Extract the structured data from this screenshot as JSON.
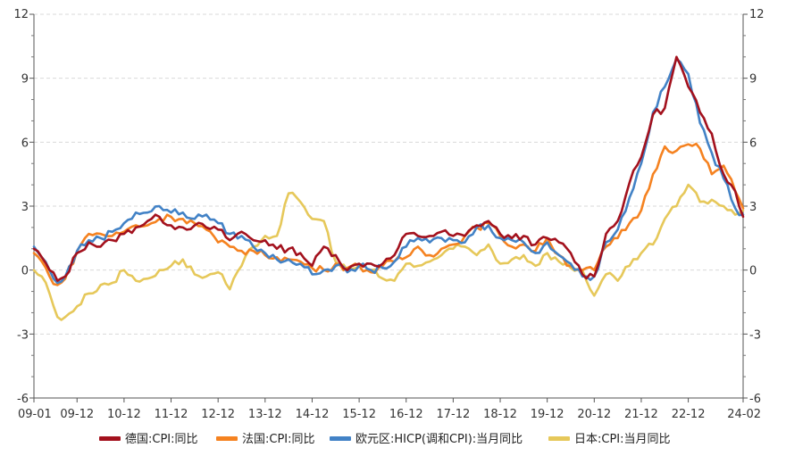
{
  "chart_data": {
    "type": "line",
    "title": "",
    "xlabel": "",
    "ylabel": "",
    "ylim": [
      -6,
      12
    ],
    "y_ticks": [
      -6,
      -3,
      0,
      3,
      6,
      9,
      12
    ],
    "y_tick_labels": [
      "-6",
      "-3",
      "0",
      "3",
      "6",
      "9",
      "12"
    ],
    "x_tick_labels": [
      "09-01",
      "09-12",
      "10-12",
      "11-12",
      "12-12",
      "13-12",
      "14-12",
      "15-12",
      "16-12",
      "17-12",
      "18-12",
      "19-12",
      "20-12",
      "21-12",
      "22-12",
      "24-02"
    ],
    "x_tick_dates": [
      "2009-01",
      "2009-12",
      "2010-12",
      "2011-12",
      "2012-12",
      "2013-12",
      "2014-12",
      "2015-12",
      "2016-12",
      "2017-12",
      "2018-12",
      "2019-12",
      "2020-12",
      "2021-12",
      "2022-12",
      "2024-02"
    ],
    "grid": true,
    "dual_y_axis": true,
    "legend_position": "bottom",
    "series": [
      {
        "name": "德国:CPI:同比",
        "color": "#A3111D",
        "points": [
          [
            "2009-01",
            1.0
          ],
          [
            "2009-03",
            0.6
          ],
          [
            "2009-05",
            0.0
          ],
          [
            "2009-07",
            -0.5
          ],
          [
            "2009-09",
            -0.3
          ],
          [
            "2009-12",
            0.8
          ],
          [
            "2010-03",
            1.3
          ],
          [
            "2010-06",
            1.1
          ],
          [
            "2010-09",
            1.4
          ],
          [
            "2010-12",
            1.7
          ],
          [
            "2011-03",
            2.0
          ],
          [
            "2011-06",
            2.3
          ],
          [
            "2011-09",
            2.5
          ],
          [
            "2011-12",
            2.1
          ],
          [
            "2012-03",
            2.0
          ],
          [
            "2012-06",
            2.1
          ],
          [
            "2012-09",
            2.0
          ],
          [
            "2012-12",
            1.9
          ],
          [
            "2013-03",
            1.4
          ],
          [
            "2013-06",
            1.8
          ],
          [
            "2013-09",
            1.4
          ],
          [
            "2013-12",
            1.4
          ],
          [
            "2014-03",
            1.0
          ],
          [
            "2014-06",
            1.0
          ],
          [
            "2014-09",
            0.8
          ],
          [
            "2014-12",
            0.2
          ],
          [
            "2015-03",
            1.1
          ],
          [
            "2015-06",
            0.7
          ],
          [
            "2015-09",
            0.0
          ],
          [
            "2015-12",
            0.3
          ],
          [
            "2016-03",
            0.3
          ],
          [
            "2016-06",
            0.3
          ],
          [
            "2016-09",
            0.7
          ],
          [
            "2016-12",
            1.7
          ],
          [
            "2017-03",
            1.6
          ],
          [
            "2017-06",
            1.6
          ],
          [
            "2017-09",
            1.8
          ],
          [
            "2017-12",
            1.6
          ],
          [
            "2018-03",
            1.6
          ],
          [
            "2018-06",
            2.1
          ],
          [
            "2018-09",
            2.3
          ],
          [
            "2018-12",
            1.7
          ],
          [
            "2019-03",
            1.5
          ],
          [
            "2019-06",
            1.6
          ],
          [
            "2019-09",
            1.2
          ],
          [
            "2019-12",
            1.5
          ],
          [
            "2020-03",
            1.3
          ],
          [
            "2020-06",
            0.8
          ],
          [
            "2020-09",
            -0.2
          ],
          [
            "2020-12",
            -0.3
          ],
          [
            "2021-03",
            1.7
          ],
          [
            "2021-06",
            2.3
          ],
          [
            "2021-09",
            4.1
          ],
          [
            "2021-12",
            5.3
          ],
          [
            "2022-03",
            7.3
          ],
          [
            "2022-06",
            7.6
          ],
          [
            "2022-09",
            10.0
          ],
          [
            "2022-12",
            8.6
          ],
          [
            "2023-03",
            7.4
          ],
          [
            "2023-06",
            6.4
          ],
          [
            "2023-09",
            4.5
          ],
          [
            "2023-12",
            3.7
          ],
          [
            "2024-02",
            2.5
          ]
        ]
      },
      {
        "name": "法国:CPI:同比",
        "color": "#F58220",
        "points": [
          [
            "2009-01",
            0.8
          ],
          [
            "2009-03",
            0.4
          ],
          [
            "2009-05",
            -0.3
          ],
          [
            "2009-07",
            -0.7
          ],
          [
            "2009-09",
            -0.4
          ],
          [
            "2009-12",
            0.9
          ],
          [
            "2010-03",
            1.7
          ],
          [
            "2010-06",
            1.7
          ],
          [
            "2010-09",
            1.6
          ],
          [
            "2010-12",
            1.8
          ],
          [
            "2011-03",
            2.1
          ],
          [
            "2011-06",
            2.1
          ],
          [
            "2011-09",
            2.4
          ],
          [
            "2011-12",
            2.5
          ],
          [
            "2012-03",
            2.4
          ],
          [
            "2012-06",
            2.2
          ],
          [
            "2012-09",
            1.9
          ],
          [
            "2012-12",
            1.3
          ],
          [
            "2013-03",
            1.1
          ],
          [
            "2013-06",
            0.9
          ],
          [
            "2013-09",
            0.9
          ],
          [
            "2013-12",
            0.7
          ],
          [
            "2014-03",
            0.6
          ],
          [
            "2014-06",
            0.5
          ],
          [
            "2014-09",
            0.4
          ],
          [
            "2014-12",
            0.1
          ],
          [
            "2015-03",
            0.0
          ],
          [
            "2015-06",
            0.3
          ],
          [
            "2015-09",
            0.1
          ],
          [
            "2015-12",
            0.2
          ],
          [
            "2016-03",
            -0.1
          ],
          [
            "2016-06",
            0.2
          ],
          [
            "2016-09",
            0.4
          ],
          [
            "2016-12",
            0.6
          ],
          [
            "2017-03",
            1.1
          ],
          [
            "2017-06",
            0.7
          ],
          [
            "2017-09",
            1.0
          ],
          [
            "2017-12",
            1.2
          ],
          [
            "2018-03",
            1.6
          ],
          [
            "2018-06",
            2.0
          ],
          [
            "2018-09",
            2.2
          ],
          [
            "2018-12",
            1.6
          ],
          [
            "2019-03",
            1.1
          ],
          [
            "2019-06",
            1.2
          ],
          [
            "2019-09",
            0.9
          ],
          [
            "2019-12",
            1.5
          ],
          [
            "2020-03",
            0.7
          ],
          [
            "2020-06",
            0.2
          ],
          [
            "2020-09",
            0.0
          ],
          [
            "2020-12",
            0.0
          ],
          [
            "2021-03",
            1.1
          ],
          [
            "2021-06",
            1.5
          ],
          [
            "2021-09",
            2.2
          ],
          [
            "2021-12",
            2.8
          ],
          [
            "2022-03",
            4.5
          ],
          [
            "2022-06",
            5.8
          ],
          [
            "2022-09",
            5.6
          ],
          [
            "2022-12",
            5.9
          ],
          [
            "2023-03",
            5.7
          ],
          [
            "2023-06",
            4.5
          ],
          [
            "2023-09",
            4.9
          ],
          [
            "2023-12",
            3.7
          ],
          [
            "2024-02",
            2.9
          ]
        ]
      },
      {
        "name": "欧元区:HICP(调和CPI):当月同比",
        "color": "#4282C6",
        "points": [
          [
            "2009-01",
            1.1
          ],
          [
            "2009-03",
            0.6
          ],
          [
            "2009-05",
            0.0
          ],
          [
            "2009-07",
            -0.6
          ],
          [
            "2009-09",
            -0.3
          ],
          [
            "2009-12",
            0.9
          ],
          [
            "2010-03",
            1.4
          ],
          [
            "2010-06",
            1.5
          ],
          [
            "2010-09",
            1.8
          ],
          [
            "2010-12",
            2.2
          ],
          [
            "2011-03",
            2.7
          ],
          [
            "2011-06",
            2.7
          ],
          [
            "2011-09",
            3.0
          ],
          [
            "2011-12",
            2.7
          ],
          [
            "2012-03",
            2.7
          ],
          [
            "2012-06",
            2.4
          ],
          [
            "2012-09",
            2.6
          ],
          [
            "2012-12",
            2.2
          ],
          [
            "2013-03",
            1.7
          ],
          [
            "2013-06",
            1.6
          ],
          [
            "2013-09",
            1.1
          ],
          [
            "2013-12",
            0.8
          ],
          [
            "2014-03",
            0.5
          ],
          [
            "2014-06",
            0.5
          ],
          [
            "2014-09",
            0.3
          ],
          [
            "2014-12",
            -0.2
          ],
          [
            "2015-03",
            0.0
          ],
          [
            "2015-06",
            0.2
          ],
          [
            "2015-09",
            -0.1
          ],
          [
            "2015-12",
            0.2
          ],
          [
            "2016-03",
            0.0
          ],
          [
            "2016-06",
            0.1
          ],
          [
            "2016-09",
            0.4
          ],
          [
            "2016-12",
            1.1
          ],
          [
            "2017-03",
            1.5
          ],
          [
            "2017-06",
            1.3
          ],
          [
            "2017-09",
            1.5
          ],
          [
            "2017-12",
            1.4
          ],
          [
            "2018-03",
            1.3
          ],
          [
            "2018-06",
            2.0
          ],
          [
            "2018-09",
            2.1
          ],
          [
            "2018-12",
            1.5
          ],
          [
            "2019-03",
            1.4
          ],
          [
            "2019-06",
            1.3
          ],
          [
            "2019-09",
            0.8
          ],
          [
            "2019-12",
            1.3
          ],
          [
            "2020-03",
            0.7
          ],
          [
            "2020-06",
            0.3
          ],
          [
            "2020-09",
            -0.3
          ],
          [
            "2020-12",
            -0.3
          ],
          [
            "2021-03",
            1.3
          ],
          [
            "2021-06",
            1.9
          ],
          [
            "2021-09",
            3.4
          ],
          [
            "2021-12",
            5.0
          ],
          [
            "2022-03",
            7.4
          ],
          [
            "2022-06",
            8.6
          ],
          [
            "2022-09",
            9.9
          ],
          [
            "2022-12",
            9.2
          ],
          [
            "2023-03",
            6.9
          ],
          [
            "2023-06",
            5.5
          ],
          [
            "2023-09",
            4.3
          ],
          [
            "2023-12",
            2.9
          ],
          [
            "2024-02",
            2.6
          ]
        ]
      },
      {
        "name": "日本:CPI:当月同比",
        "color": "#E6C85A",
        "points": [
          [
            "2009-01",
            0.0
          ],
          [
            "2009-03",
            -0.3
          ],
          [
            "2009-05",
            -1.1
          ],
          [
            "2009-07",
            -2.2
          ],
          [
            "2009-09",
            -2.2
          ],
          [
            "2009-12",
            -1.7
          ],
          [
            "2010-03",
            -1.1
          ],
          [
            "2010-06",
            -0.7
          ],
          [
            "2010-09",
            -0.6
          ],
          [
            "2010-12",
            0.0
          ],
          [
            "2011-03",
            -0.5
          ],
          [
            "2011-06",
            -0.4
          ],
          [
            "2011-09",
            0.0
          ],
          [
            "2011-12",
            0.2
          ],
          [
            "2012-03",
            0.5
          ],
          [
            "2012-06",
            -0.2
          ],
          [
            "2012-09",
            -0.3
          ],
          [
            "2012-12",
            -0.1
          ],
          [
            "2013-03",
            -0.9
          ],
          [
            "2013-06",
            0.2
          ],
          [
            "2013-09",
            1.1
          ],
          [
            "2013-12",
            1.6
          ],
          [
            "2014-03",
            1.6
          ],
          [
            "2014-06",
            3.6
          ],
          [
            "2014-09",
            3.2
          ],
          [
            "2014-12",
            2.4
          ],
          [
            "2015-03",
            2.3
          ],
          [
            "2015-06",
            0.4
          ],
          [
            "2015-09",
            0.0
          ],
          [
            "2015-12",
            0.2
          ],
          [
            "2016-03",
            0.0
          ],
          [
            "2016-06",
            -0.4
          ],
          [
            "2016-09",
            -0.5
          ],
          [
            "2016-12",
            0.3
          ],
          [
            "2017-03",
            0.2
          ],
          [
            "2017-06",
            0.4
          ],
          [
            "2017-09",
            0.7
          ],
          [
            "2017-12",
            1.0
          ],
          [
            "2018-03",
            1.1
          ],
          [
            "2018-06",
            0.7
          ],
          [
            "2018-09",
            1.2
          ],
          [
            "2018-12",
            0.3
          ],
          [
            "2019-03",
            0.5
          ],
          [
            "2019-06",
            0.7
          ],
          [
            "2019-09",
            0.2
          ],
          [
            "2019-12",
            0.8
          ],
          [
            "2020-03",
            0.4
          ],
          [
            "2020-06",
            0.1
          ],
          [
            "2020-09",
            0.0
          ],
          [
            "2020-12",
            -1.2
          ],
          [
            "2021-03",
            -0.2
          ],
          [
            "2021-06",
            -0.5
          ],
          [
            "2021-09",
            0.2
          ],
          [
            "2021-12",
            0.8
          ],
          [
            "2022-03",
            1.2
          ],
          [
            "2022-06",
            2.4
          ],
          [
            "2022-09",
            3.0
          ],
          [
            "2022-12",
            4.0
          ],
          [
            "2023-03",
            3.2
          ],
          [
            "2023-06",
            3.3
          ],
          [
            "2023-09",
            3.0
          ],
          [
            "2023-12",
            2.6
          ],
          [
            "2024-02",
            2.8
          ]
        ]
      }
    ]
  }
}
